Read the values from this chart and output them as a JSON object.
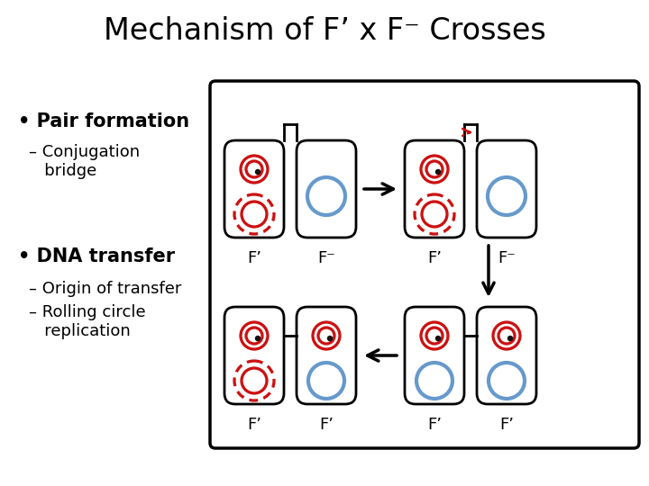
{
  "title": "Mechanism of F’ x F⁻ Crosses",
  "title_fontsize": 24,
  "bullet1": "• Pair formation",
  "sub1": "– Conjugation\n   bridge",
  "bullet2": "• DNA transfer",
  "sub2a": "– Origin of transfer",
  "sub2b": "– Rolling circle\n   replication",
  "background": "#ffffff",
  "red_color": "#cc1111",
  "blue_color": "#6699cc",
  "label_F_prime": "F’",
  "label_F_minus": "F⁻"
}
